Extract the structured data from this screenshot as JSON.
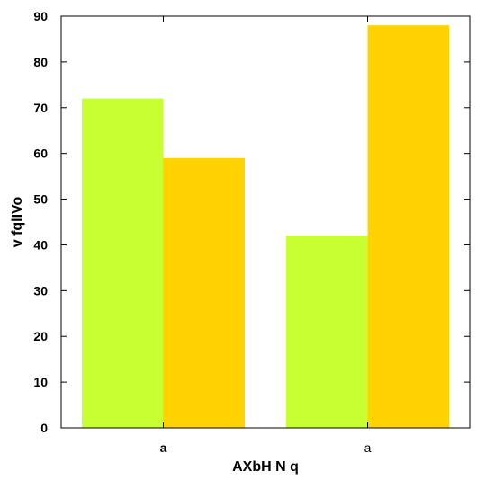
{
  "chart_data": {
    "type": "bar",
    "title": "",
    "xlabel": "AXbH N q",
    "ylabel": "v fqlIVo",
    "categories": [
      "a",
      "a"
    ],
    "category_label_weight": [
      "bold",
      "normal"
    ],
    "series": [
      {
        "color": "#c8ff33",
        "values": [
          72,
          42
        ]
      },
      {
        "color": "#ffd200",
        "values": [
          59,
          88
        ]
      }
    ],
    "ylim": [
      0,
      90
    ],
    "yticks": [
      0,
      10,
      20,
      30,
      40,
      50,
      60,
      70,
      80,
      90
    ],
    "grid": false,
    "legend": "none"
  }
}
